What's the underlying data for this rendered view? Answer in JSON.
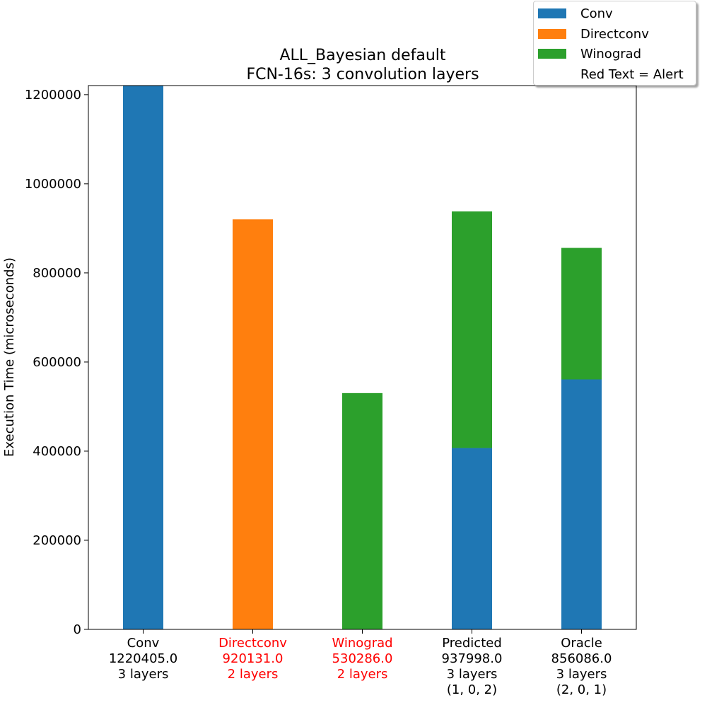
{
  "chart_data": {
    "type": "bar",
    "stacked": true,
    "title": "ALL_Bayesian default",
    "subtitle": "FCN-16s: 3 convolution layers",
    "ylabel": "Execution Time (microseconds)",
    "xlabel": "",
    "ylim": [
      0,
      1220405
    ],
    "yticks": [
      0,
      200000,
      400000,
      600000,
      800000,
      1000000,
      1200000
    ],
    "ytick_labels": [
      "0",
      "200000",
      "400000",
      "600000",
      "800000",
      "1000000",
      "1200000"
    ],
    "grid": false,
    "legend_position": "top-right",
    "categories": [
      {
        "lines": [
          "Conv",
          "1220405.0",
          "3 layers"
        ],
        "alert": false
      },
      {
        "lines": [
          "Directconv",
          "920131.0",
          "2 layers"
        ],
        "alert": true
      },
      {
        "lines": [
          "Winograd",
          "530286.0",
          "2 layers"
        ],
        "alert": true
      },
      {
        "lines": [
          "Predicted",
          "937998.0",
          "3 layers",
          "(1, 0, 2)"
        ],
        "alert": false
      },
      {
        "lines": [
          "Oracle",
          "856086.0",
          "3 layers",
          "(2, 0, 1)"
        ],
        "alert": false
      }
    ],
    "series": [
      {
        "name": "Conv",
        "color": "#1f77b4",
        "values": [
          1220405,
          0,
          0,
          407000,
          561000
        ]
      },
      {
        "name": "Directconv",
        "color": "#ff7f0e",
        "values": [
          0,
          920131,
          0,
          0,
          0
        ]
      },
      {
        "name": "Winograd",
        "color": "#2ca02c",
        "values": [
          0,
          0,
          530286,
          530998,
          295086
        ]
      }
    ],
    "legend": [
      {
        "label": "Conv",
        "color": "#1f77b4"
      },
      {
        "label": "Directconv",
        "color": "#ff7f0e"
      },
      {
        "label": "Winograd",
        "color": "#2ca02c"
      },
      {
        "label": "Red Text = Alert",
        "color": "none"
      }
    ],
    "alert_color": "#ff0000"
  }
}
